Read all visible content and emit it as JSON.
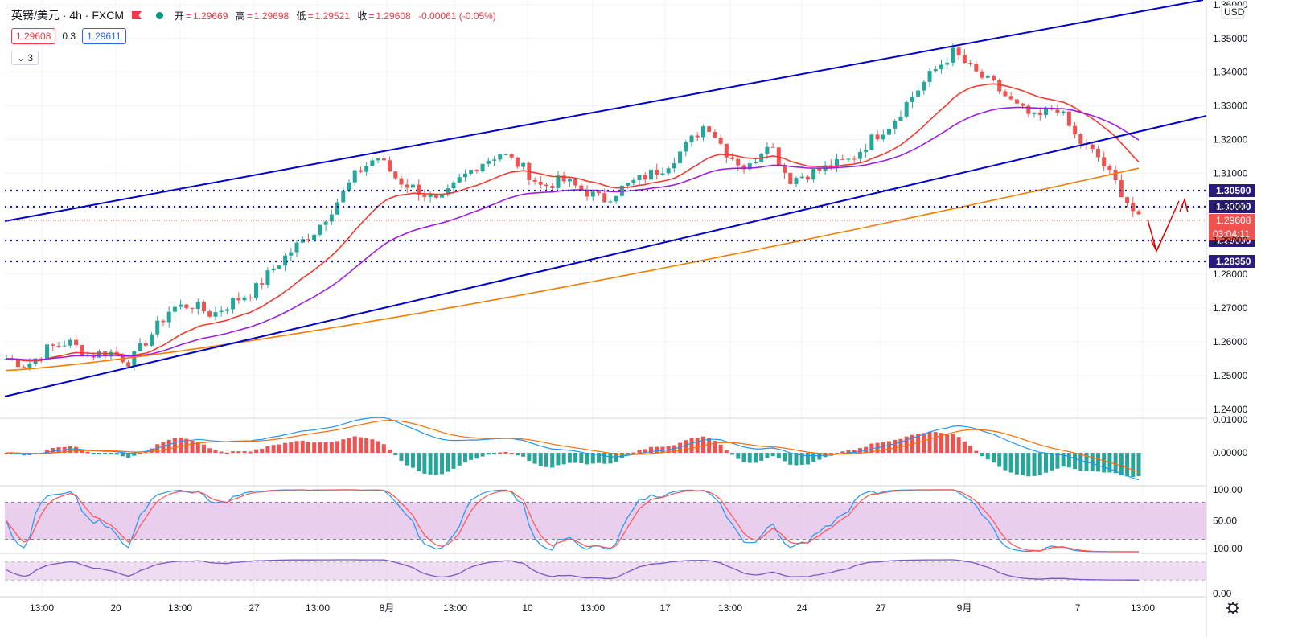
{
  "header": {
    "symbol": "英镑/美元 · 4h · FXCM",
    "open_label": "开",
    "open": "1.29669",
    "high_label": "高",
    "high": "1.29698",
    "low_label": "低",
    "low": "1.29521",
    "close_label": "收",
    "close": "1.29608",
    "change": "-0.00061 (-0.05%)"
  },
  "quote": {
    "sell": "1.29608",
    "spread": "0.3",
    "buy": "1.29611"
  },
  "legend_toggle": {
    "icon": "chevron-down-icon",
    "label": "3"
  },
  "colors": {
    "up": "#26a69a",
    "down": "#ef5350",
    "trendline": "#0000cc",
    "ema_red": "#f23a2f",
    "ema_purple": "#9c1ee6",
    "ema_orange": "#f57c00",
    "level_line": "#1a1a8c",
    "level_label_bg": "#2a1a7e",
    "annotation": "#e00000"
  },
  "chart_data": [
    {
      "type": "candlestick",
      "title": "英镑/美元 · 4h · FXCM",
      "price_axis": {
        "currency": "USD",
        "ticks": [
          "1.36000",
          "1.35000",
          "1.34000",
          "1.33000",
          "1.32000",
          "1.31000",
          "1.30000",
          "1.29000",
          "1.28000",
          "1.27000",
          "1.26000",
          "1.25000",
          "1.24000"
        ],
        "ylim": [
          1.2378,
          1.3614
        ]
      },
      "time_axis": {
        "ticks": [
          "13:00",
          "20",
          "13:00",
          "27",
          "13:00",
          "8月",
          "13:00",
          "10",
          "13:00",
          "17",
          "13:00",
          "24",
          "27",
          "9月",
          "7",
          "13:00"
        ]
      },
      "close_series_approx": [
        1.255,
        1.253,
        1.258,
        1.26,
        1.256,
        1.257,
        1.254,
        1.262,
        1.27,
        1.271,
        1.268,
        1.272,
        1.275,
        1.282,
        1.288,
        1.293,
        1.301,
        1.31,
        1.315,
        1.308,
        1.305,
        1.301,
        1.308,
        1.313,
        1.316,
        1.312,
        1.306,
        1.308,
        1.305,
        1.302,
        1.306,
        1.309,
        1.312,
        1.318,
        1.325,
        1.316,
        1.311,
        1.32,
        1.308,
        1.31,
        1.312,
        1.314,
        1.32,
        1.325,
        1.333,
        1.34,
        1.346,
        1.34,
        1.336,
        1.33,
        1.326,
        1.33,
        1.32,
        1.315,
        1.306,
        1.2961
      ],
      "indicators": [
        {
          "name": "EMA",
          "color": "#f23a2f"
        },
        {
          "name": "EMA",
          "color": "#9c1ee6"
        },
        {
          "name": "EMA",
          "color": "#f57c00"
        }
      ],
      "horizontal_levels": [
        "1.30500",
        "1.30000",
        "1.29000",
        "1.28350"
      ],
      "last_price": "1.29608",
      "countdown": "03:04:11"
    },
    {
      "type": "macd",
      "ticks": [
        "0.01000",
        "0.00000"
      ]
    },
    {
      "type": "stochastic",
      "ticks": [
        "100.00",
        "50.00"
      ]
    },
    {
      "type": "rsi",
      "ticks": [
        "100.00",
        "0.00"
      ]
    }
  ]
}
